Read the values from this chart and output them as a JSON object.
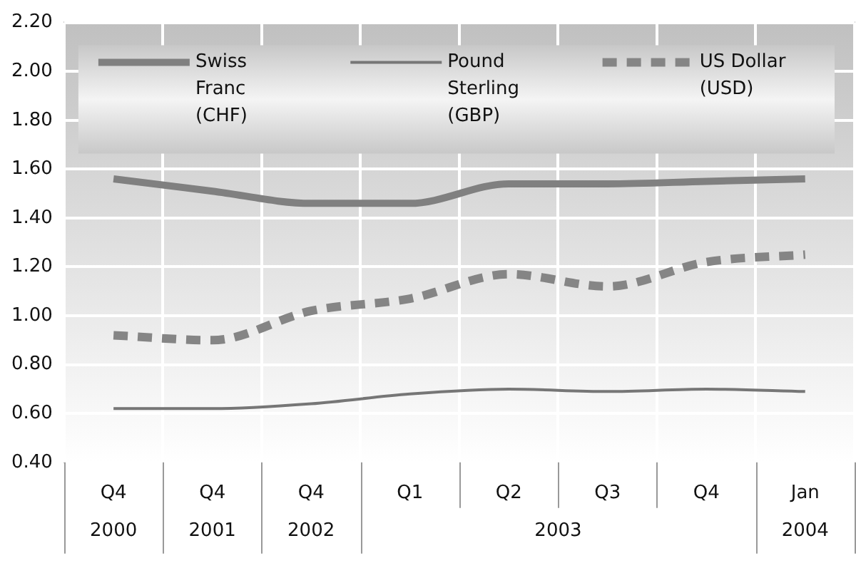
{
  "chart_data": {
    "type": "line",
    "categories": [
      "Q4",
      "Q4",
      "Q4",
      "Q1",
      "Q2",
      "Q3",
      "Q4",
      "Jan"
    ],
    "series": [
      {
        "name": "Swiss Franc (CHF)",
        "color": "#808080",
        "line_style": "solid",
        "values": [
          1.56,
          1.51,
          1.46,
          1.46,
          1.54,
          1.54,
          1.55,
          1.56
        ]
      },
      {
        "name": "Pound Sterling (GBP)",
        "color": "#767676",
        "line_style": "solid",
        "values": [
          0.62,
          0.62,
          0.64,
          0.68,
          0.7,
          0.69,
          0.7,
          0.69
        ]
      },
      {
        "name": "US Dollar (USD)",
        "color": "#858585",
        "line_style": "dashed",
        "values": [
          0.92,
          0.9,
          1.02,
          1.07,
          1.17,
          1.12,
          1.22,
          1.25
        ]
      }
    ],
    "ylim": [
      0.4,
      2.2
    ],
    "yticks": [
      {
        "value": 0.4,
        "label": "0.40"
      },
      {
        "value": 0.6,
        "label": "0.60"
      },
      {
        "value": 0.8,
        "label": "0.80"
      },
      {
        "value": 1.0,
        "label": "1.00"
      },
      {
        "value": 1.2,
        "label": "1.20"
      },
      {
        "value": 1.4,
        "label": "1.40"
      },
      {
        "value": 1.6,
        "label": "1.60"
      },
      {
        "value": 1.8,
        "label": "1.80"
      },
      {
        "value": 2.0,
        "label": "2.00"
      },
      {
        "value": 2.2,
        "label": "2.20"
      }
    ],
    "grid": true,
    "legend": "top",
    "annotations": [
      "2000",
      "2001",
      "2002",
      "2003",
      "2004"
    ]
  }
}
